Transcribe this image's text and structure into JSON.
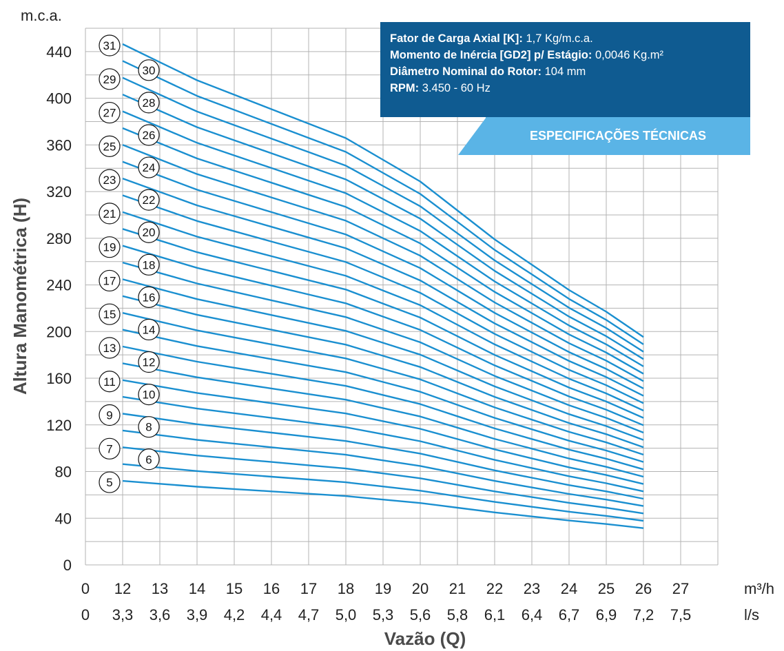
{
  "specs": {
    "rows": [
      {
        "label": "Fator de Carga Axial [K]:",
        "value": "1,7 Kg/m.c.a."
      },
      {
        "label": "Momento de Inércia [GD2] p/ Estágio:",
        "value": "0,0046 Kg.m²"
      },
      {
        "label": "Diâmetro Nominal do Rotor:",
        "value": "104 mm"
      },
      {
        "label": "RPM:",
        "value": "3.450 - 60 Hz"
      }
    ],
    "tab_label": "ESPECIFICAÇÕES TÉCNICAS"
  },
  "colors": {
    "curve": "#1a8fd0",
    "grid": "#b3b3b3",
    "spec_box": "#0f5b91",
    "spec_tab": "#5ab4e6"
  },
  "chart_data": {
    "type": "line",
    "ylabel": "Altura Manométrica (H)",
    "yunit": "m.c.a.",
    "xlabel": "Vazão (Q)",
    "ylim": [
      0,
      460
    ],
    "yticks": [
      0,
      40,
      80,
      120,
      160,
      200,
      240,
      280,
      320,
      360,
      400,
      440
    ],
    "x_m3h": {
      "unit": "m³/h",
      "ticks": [
        "0",
        "12",
        "13",
        "14",
        "15",
        "16",
        "17",
        "18",
        "19",
        "20",
        "21",
        "22",
        "23",
        "24",
        "25",
        "26",
        "27"
      ]
    },
    "x_ls": {
      "unit": "l/s",
      "ticks": [
        "0",
        "3,3",
        "3,6",
        "3,9",
        "4,2",
        "4,4",
        "4,7",
        "5,0",
        "5,3",
        "5,6",
        "5,8",
        "6,1",
        "6,4",
        "6,7",
        "6,9",
        "7,2",
        "7,5"
      ]
    },
    "x": [
      12,
      13,
      14,
      15,
      16,
      17,
      18,
      19,
      20,
      21,
      22,
      23,
      24,
      25,
      26
    ],
    "stage_head_per_stage": [
      14.4,
      13.9,
      13.4,
      13.0,
      12.6,
      12.2,
      11.8,
      11.2,
      10.6,
      9.8,
      9.0,
      8.3,
      7.6,
      7.0,
      6.3
    ],
    "stages": [
      5,
      6,
      7,
      8,
      9,
      10,
      11,
      12,
      13,
      14,
      15,
      16,
      17,
      18,
      19,
      20,
      21,
      22,
      23,
      24,
      25,
      26,
      27,
      28,
      29,
      30,
      31
    ],
    "grid": true
  }
}
